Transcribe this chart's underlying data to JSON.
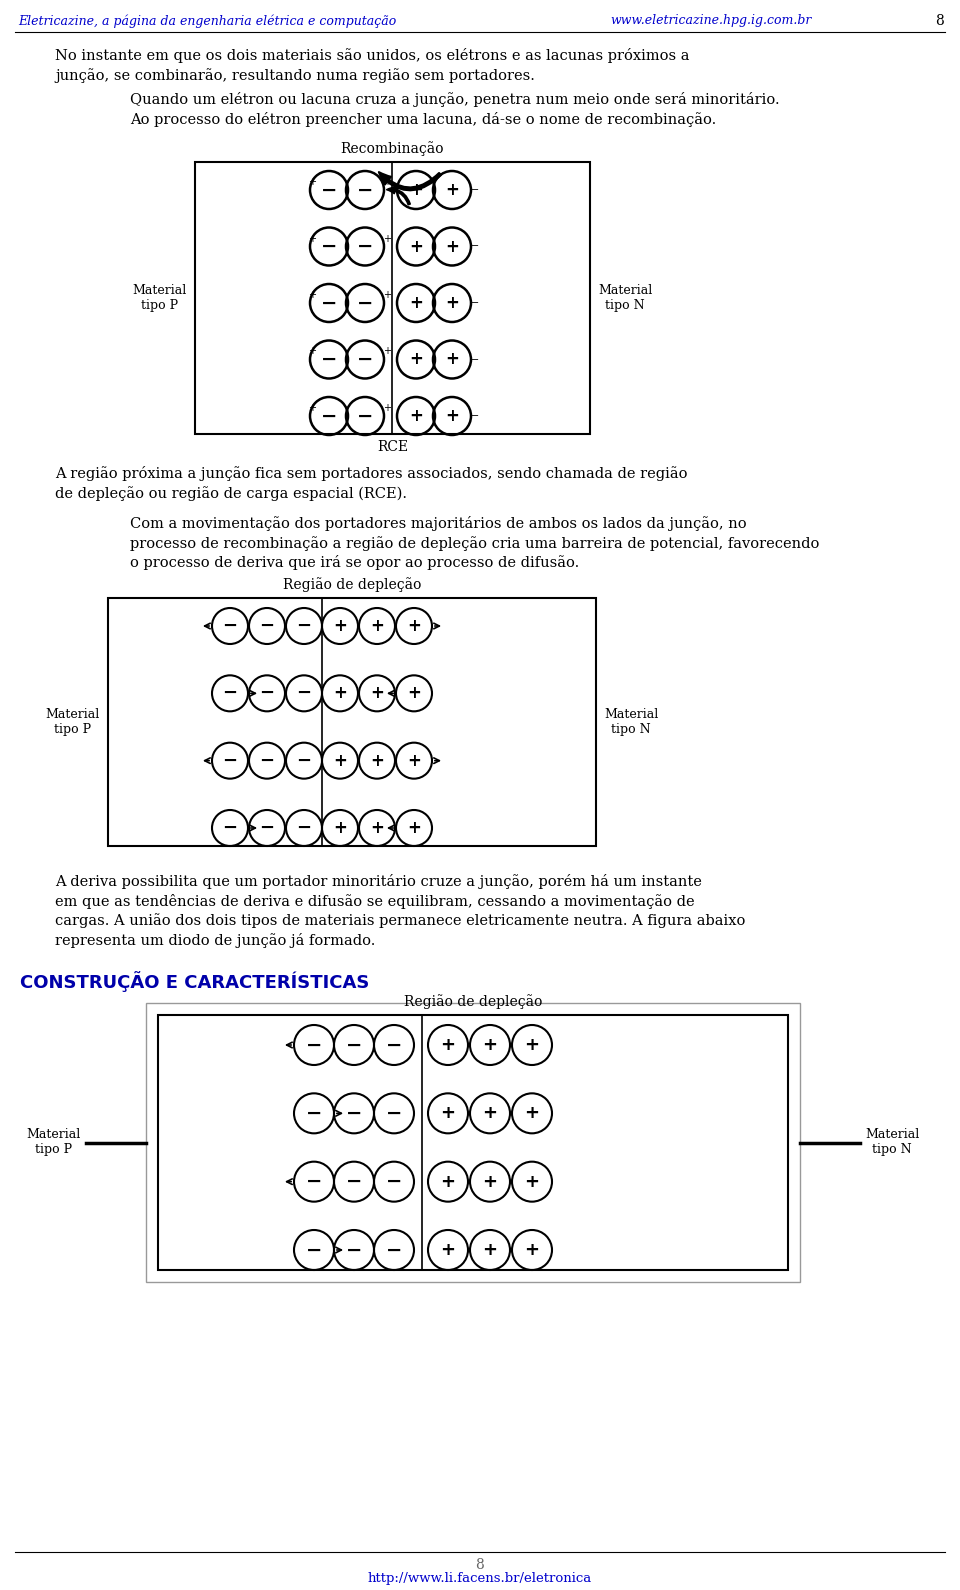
{
  "page_num": "8",
  "header_left": "Eletricazine, a página da engenharia elétrica e computação",
  "header_right": "www.eletricazine.hpg.ig.com.br",
  "footer_url": "http://www.li.facens.br/eletronica",
  "header_color": "#0000CC",
  "body_color": "#000000",
  "bg_color": "#FFFFFF",
  "paragraph1": "No instante em que os dois materiais são unidos, os elétrons e as lacunas próximos a\njunção, se combinarão, resultando numa região sem portadores.",
  "paragraph2": "Quando um elétron ou lacuna cruza a junção, penetra num meio onde será minoritário.\nAo processo do elétron preencher uma lacuna, dá-se o nome de recombinação.",
  "fig1_label_top": "Recombinação",
  "fig1_label_bottom": "RCE",
  "fig1_label_left": "Material\ntipo P",
  "fig1_label_right": "Material\ntipo N",
  "paragraph3": "A região próxima a junção fica sem portadores associados, sendo chamada de região\nde depleção ou região de carga espacial (RCE).",
  "paragraph4": "Com a movimentação dos portadores majoritários de ambos os lados da junção, no\nprocesso de recombinação a região de depleção cria uma barreira de potencial, favorecendo\no processo de deriva que irá se opor ao processo de difusão.",
  "fig2_label_top": "Região de depleção",
  "fig2_label_left": "Material\ntipo P",
  "fig2_label_right": "Material\ntipo N",
  "paragraph5": "A deriva possibilita que um portador minoritário cruze a junção, porém há um instante\nem que as tendências de deriva e difusão se equilibram, cessando a movimentação de\ncargas. A união dos dois tipos de materiais permanece eletricamente neutra. A figura abaixo\nrepresenta um diodo de junção já formado.",
  "section_title": "CONSTRUÇÃO E CARACTERÍSTICAS",
  "fig3_label_top": "Região de depleção",
  "fig3_label_left": "Material\ntipo P",
  "fig3_label_right": "Material\ntipo N"
}
